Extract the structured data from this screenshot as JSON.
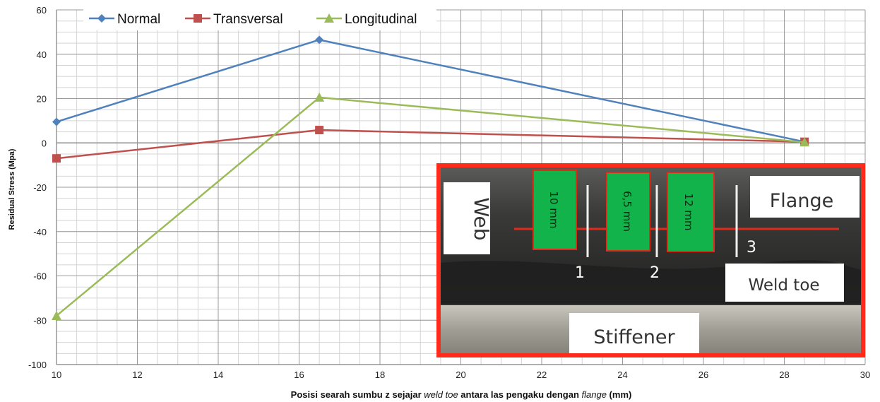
{
  "chart_data": {
    "type": "line",
    "xlabel": {
      "prefix": "Posisi searah sumbu z sejajar ",
      "italic1": "weld toe",
      "middle": " antara las pengaku dengan ",
      "italic2": "flange",
      "suffix": " (mm)"
    },
    "ylabel": "Residual Stress  (Mpa)",
    "xlim": [
      10,
      30
    ],
    "ylim": [
      -100,
      60
    ],
    "x_ticks": [
      10,
      12,
      14,
      16,
      18,
      20,
      22,
      24,
      26,
      28,
      30
    ],
    "y_ticks": [
      60,
      40,
      20,
      0,
      -20,
      -40,
      -60,
      -80,
      -100
    ],
    "grid": true,
    "legend_position": "top-left",
    "series": [
      {
        "name": "Normal",
        "color": "#4f81bd",
        "marker": "diamond",
        "x": [
          10,
          16.5,
          28.5
        ],
        "y": [
          9.5,
          46.5,
          0.5
        ]
      },
      {
        "name": "Transversal",
        "color": "#c0504d",
        "marker": "square",
        "x": [
          10,
          16.5,
          28.5
        ],
        "y": [
          -7,
          5.8,
          0.5
        ]
      },
      {
        "name": "Longitudinal",
        "color": "#9bbb59",
        "marker": "triangle",
        "x": [
          10,
          16.5,
          28.5
        ],
        "y": [
          -78,
          20.5,
          0.3
        ]
      }
    ]
  },
  "inset_photo": {
    "labels": {
      "web": "Web",
      "flange": "Flange",
      "weld_toe": "Weld toe",
      "stiffener": "Stiffener"
    },
    "gauges": [
      "10 mm",
      "6,5 mm",
      "12 mm"
    ],
    "points": [
      "1",
      "2",
      "3"
    ],
    "colors": {
      "frame": "#ff2a1a",
      "gauge_fill": "#12b34a",
      "plate_dark": "#2a2a2a",
      "stiffener": "#a8a59c"
    }
  }
}
